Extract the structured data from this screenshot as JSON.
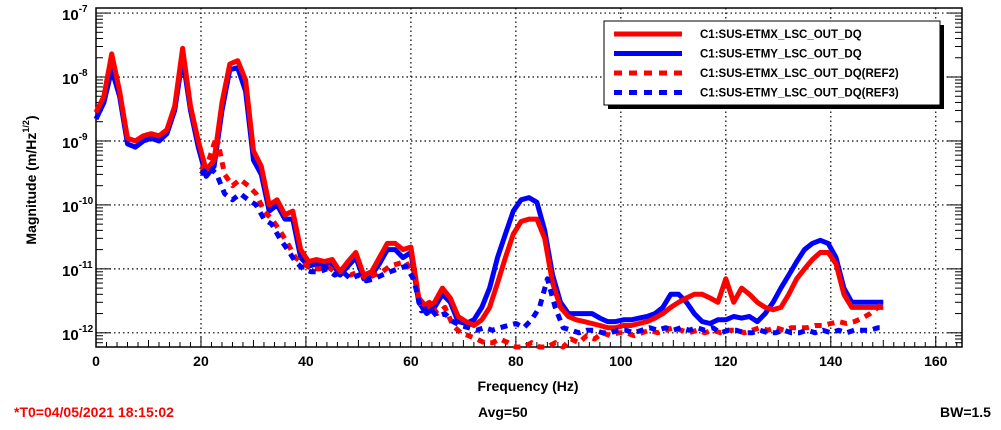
{
  "footer": {
    "timestamp": "*T0=04/05/2021 18:15:02",
    "avg": "Avg=50",
    "bw": "BW=1.5"
  },
  "colors": {
    "red": "#ff0000",
    "blue": "#0000ff",
    "background": "#ffffff"
  },
  "chart_data": {
    "type": "line",
    "title": "",
    "xlabel": "Frequency (Hz)",
    "ylabel": "Magnitude (m/Hz^1/2)",
    "ylabel_parts": {
      "main": "Magnitude (m/Hz",
      "sup": "1/2",
      "close": ")"
    },
    "xscale": "linear",
    "yscale": "log",
    "xlim": [
      0,
      165
    ],
    "ylim": [
      6e-13,
      1.2e-07
    ],
    "grid": true,
    "legend_position": "top-right",
    "x_ticks": [
      {
        "value": 0,
        "label": "0"
      },
      {
        "value": 20,
        "label": "20"
      },
      {
        "value": 40,
        "label": "40"
      },
      {
        "value": 60,
        "label": "60"
      },
      {
        "value": 80,
        "label": "80"
      },
      {
        "value": 100,
        "label": "100"
      },
      {
        "value": 120,
        "label": "120"
      },
      {
        "value": 140,
        "label": "140"
      },
      {
        "value": 160,
        "label": "160"
      }
    ],
    "y_ticks": [
      {
        "value": 1e-07,
        "base": "10",
        "exp": "-7"
      },
      {
        "value": 1e-08,
        "base": "10",
        "exp": "-8"
      },
      {
        "value": 1e-09,
        "base": "10",
        "exp": "-9"
      },
      {
        "value": 1e-10,
        "base": "10",
        "exp": "-10"
      },
      {
        "value": 1e-11,
        "base": "10",
        "exp": "-11"
      },
      {
        "value": 1e-12,
        "base": "10",
        "exp": "-12"
      }
    ],
    "series": [
      {
        "name": "C1:SUS-ETMY_LSC_OUT_DQ",
        "color": "#0000ff",
        "style": "solid",
        "x": [
          0,
          1.5,
          3,
          4.5,
          6,
          7.5,
          9,
          10.5,
          12,
          13.5,
          15,
          16.5,
          18,
          19.5,
          21,
          22.5,
          24,
          25.5,
          27,
          28.5,
          30,
          31.5,
          33,
          34.5,
          36,
          37.5,
          39,
          40.5,
          42,
          43.5,
          45,
          46.5,
          48,
          49.5,
          51,
          52.5,
          54,
          55.5,
          57,
          58.5,
          60,
          61.5,
          63,
          64.5,
          66,
          67.5,
          69,
          70.5,
          72,
          73.5,
          75,
          76.5,
          78,
          79.5,
          81,
          82.5,
          84,
          85.5,
          87,
          88.5,
          90,
          91.5,
          93,
          94.5,
          96,
          97.5,
          99,
          100.5,
          102,
          103.5,
          105,
          106.5,
          108,
          109.5,
          111,
          112.5,
          114,
          115.5,
          117,
          118.5,
          120,
          121.5,
          123,
          124.5,
          126,
          127.5,
          129,
          130.5,
          132,
          133.5,
          135,
          136.5,
          138,
          139.5,
          141,
          142.5,
          144,
          145.5,
          147,
          148.5,
          150
        ],
        "values": [
          2.2e-09,
          4e-09,
          1.3e-08,
          5e-09,
          9e-10,
          8e-10,
          1e-09,
          1.1e-09,
          1e-09,
          1.3e-09,
          3e-09,
          2e-08,
          3e-09,
          8e-10,
          2.8e-10,
          4e-10,
          3e-09,
          1.3e-08,
          1.4e-08,
          6e-09,
          5e-10,
          3e-10,
          8e-11,
          1e-10,
          6e-11,
          6e-11,
          1.5e-11,
          1.1e-11,
          1.2e-11,
          1.1e-11,
          1.2e-11,
          8e-12,
          1.1e-11,
          1.5e-11,
          7e-12,
          8e-12,
          1.2e-11,
          2e-11,
          2e-11,
          1.5e-11,
          1.8e-11,
          3e-12,
          2e-12,
          2.5e-12,
          4e-12,
          3e-12,
          1.5e-12,
          1.4e-12,
          1.6e-12,
          2.5e-12,
          5e-12,
          1.5e-11,
          3.5e-11,
          8e-11,
          1.2e-10,
          1.3e-10,
          1.1e-10,
          4e-11,
          8e-12,
          3e-12,
          2e-12,
          2e-12,
          2e-12,
          2e-12,
          1.7e-12,
          1.5e-12,
          1.5e-12,
          1.6e-12,
          1.6e-12,
          1.7e-12,
          1.8e-12,
          2e-12,
          2.5e-12,
          4e-12,
          4e-12,
          3e-12,
          2e-12,
          1.5e-12,
          1.4e-12,
          1.6e-12,
          1.6e-12,
          1.8e-12,
          1.7e-12,
          1.8e-12,
          1.5e-12,
          2e-12,
          3e-12,
          5e-12,
          8e-12,
          1.3e-11,
          2e-11,
          2.5e-11,
          2.8e-11,
          2.5e-11,
          1.5e-11,
          5e-12,
          3e-12,
          3e-12,
          3e-12,
          3e-12,
          3e-12
        ]
      },
      {
        "name": "C1:SUS-ETMX_LSC_OUT_DQ",
        "color": "#ff0000",
        "style": "solid",
        "x": [
          0,
          1.5,
          3,
          4.5,
          6,
          7.5,
          9,
          10.5,
          12,
          13.5,
          15,
          16.5,
          18,
          19.5,
          21,
          22.5,
          24,
          25.5,
          27,
          28.5,
          30,
          31.5,
          33,
          34.5,
          36,
          37.5,
          39,
          40.5,
          42,
          43.5,
          45,
          46.5,
          48,
          49.5,
          51,
          52.5,
          54,
          55.5,
          57,
          58.5,
          60,
          61.5,
          63,
          64.5,
          66,
          67.5,
          69,
          70.5,
          72,
          73.5,
          75,
          76.5,
          78,
          79.5,
          81,
          82.5,
          84,
          85.5,
          87,
          88.5,
          90,
          91.5,
          93,
          94.5,
          96,
          97.5,
          99,
          100.5,
          102,
          103.5,
          105,
          106.5,
          108,
          109.5,
          111,
          112.5,
          114,
          115.5,
          117,
          118.5,
          120,
          121.5,
          123,
          124.5,
          126,
          127.5,
          129,
          130.5,
          132,
          133.5,
          135,
          136.5,
          138,
          139.5,
          141,
          142.5,
          144,
          145.5,
          147,
          148.5,
          150
        ],
        "values": [
          2.8e-09,
          5e-09,
          2.3e-08,
          6e-09,
          1.1e-09,
          1e-09,
          1.2e-09,
          1.3e-09,
          1.2e-09,
          1.5e-09,
          3.5e-09,
          2.8e-08,
          3.5e-09,
          1e-09,
          3.5e-10,
          5e-10,
          4e-09,
          1.6e-08,
          1.8e-08,
          9e-09,
          7e-10,
          4e-10,
          1e-10,
          1.2e-10,
          7e-11,
          8e-11,
          2e-11,
          1.3e-11,
          1.4e-11,
          1.3e-11,
          1.4e-11,
          9e-12,
          1.3e-11,
          1.8e-11,
          8e-12,
          9e-12,
          1.5e-11,
          2.5e-11,
          2.5e-11,
          2e-11,
          2.2e-11,
          3.5e-12,
          2.5e-12,
          3e-12,
          5e-12,
          3.5e-12,
          1.8e-12,
          1.5e-12,
          1.3e-12,
          1.6e-12,
          2.5e-12,
          6e-12,
          1.5e-11,
          3.5e-11,
          5.5e-11,
          6e-11,
          6e-11,
          3e-11,
          6e-12,
          2.5e-12,
          1.8e-12,
          1.6e-12,
          1.5e-12,
          1.4e-12,
          1.3e-12,
          1.2e-12,
          1.2e-12,
          1.3e-12,
          1.3e-12,
          1.4e-12,
          1.5e-12,
          1.7e-12,
          2e-12,
          2.5e-12,
          3e-12,
          3.5e-12,
          4e-12,
          4e-12,
          3.5e-12,
          3e-12,
          7e-12,
          3e-12,
          5e-12,
          4e-12,
          3e-12,
          2.5e-12,
          2.3e-12,
          2.5e-12,
          4e-12,
          7e-12,
          1e-11,
          1.4e-11,
          1.8e-11,
          1.8e-11,
          1.2e-11,
          4e-12,
          2.5e-12,
          2.5e-12,
          2.5e-12,
          2.5e-12,
          2.5e-12
        ]
      },
      {
        "name": "C1:SUS-ETMX_LSC_OUT_DQ(REF2)",
        "color": "#ff0000",
        "style": "dashed",
        "x": [
          20,
          21.5,
          23,
          24.5,
          26,
          27.5,
          29,
          30.5,
          32,
          33.5,
          35,
          36.5,
          38,
          39.5,
          41,
          42.5,
          44,
          45.5,
          47,
          48.5,
          50,
          51.5,
          53,
          54.5,
          56,
          57.5,
          59,
          60.5,
          62,
          63.5,
          65,
          66.5,
          68,
          69.5,
          71,
          72.5,
          74,
          75.5,
          77,
          78.5,
          80,
          81.5,
          83,
          84.5,
          86,
          87.5,
          89,
          90.5,
          92,
          93.5,
          95,
          96.5,
          98,
          99.5,
          101,
          102.5,
          104,
          105.5,
          107,
          108.5,
          110,
          111.5,
          113,
          114.5,
          116,
          117.5,
          119,
          120.5,
          122,
          123.5,
          125,
          126.5,
          128,
          129.5,
          131,
          132.5,
          134,
          135.5,
          137,
          138.5,
          140,
          141.5,
          143,
          144.5,
          146,
          147.5,
          149,
          150
        ],
        "values": [
          3.5e-10,
          5e-10,
          1.2e-09,
          3e-10,
          2e-10,
          2.5e-10,
          2e-10,
          1.5e-10,
          8e-11,
          6e-11,
          4e-11,
          2.5e-11,
          1.5e-11,
          1.2e-11,
          1e-11,
          1e-11,
          1.1e-11,
          9e-12,
          1e-11,
          8e-12,
          9e-12,
          7e-12,
          8e-12,
          9e-12,
          1.1e-11,
          1.2e-11,
          1.3e-11,
          8e-12,
          2.5e-12,
          3e-12,
          2e-12,
          2.5e-12,
          1.3e-12,
          1e-12,
          9e-13,
          8e-13,
          7e-13,
          7e-13,
          8e-13,
          7e-13,
          6e-13,
          6e-13,
          7e-13,
          6e-13,
          6e-13,
          7e-13,
          6e-13,
          8e-13,
          7e-13,
          9e-13,
          8e-13,
          1e-12,
          9e-13,
          1e-12,
          1e-12,
          9e-13,
          1e-12,
          1.1e-12,
          1e-12,
          1.1e-12,
          1.2e-12,
          1.1e-12,
          1e-12,
          1.1e-12,
          1e-12,
          1.1e-12,
          1e-12,
          1.1e-12,
          1.1e-12,
          1e-12,
          1.1e-12,
          1.2e-12,
          1.1e-12,
          1.2e-12,
          1.1e-12,
          1.2e-12,
          1.2e-12,
          1.2e-12,
          1.3e-12,
          1.3e-12,
          1.4e-12,
          1.5e-12,
          1.4e-12,
          1.5e-12,
          1.7e-12,
          2e-12,
          2.5e-12,
          3e-12
        ]
      },
      {
        "name": "C1:SUS-ETMY_LSC_OUT_DQ(REF3)",
        "color": "#0000ff",
        "style": "dashed",
        "x": [
          20,
          21.5,
          23,
          24.5,
          26,
          27.5,
          29,
          30.5,
          32,
          33.5,
          35,
          36.5,
          38,
          39.5,
          41,
          42.5,
          44,
          45.5,
          47,
          48.5,
          50,
          51.5,
          53,
          54.5,
          56,
          57.5,
          59,
          60.5,
          62,
          63.5,
          65,
          66.5,
          68,
          69.5,
          71,
          72.5,
          74,
          75.5,
          77,
          78.5,
          80,
          81.5,
          83,
          84.5,
          86,
          87.5,
          89,
          90.5,
          92,
          93.5,
          95,
          96.5,
          98,
          99.5,
          101,
          102.5,
          104,
          105.5,
          107,
          108.5,
          110,
          111.5,
          113,
          114.5,
          116,
          117.5,
          119,
          120.5,
          122,
          123.5,
          125,
          126.5,
          128,
          129.5,
          131,
          132.5,
          134,
          135.5,
          137,
          138.5,
          140,
          141.5,
          143,
          144.5,
          146,
          147.5,
          149,
          150
        ],
        "values": [
          3e-10,
          4e-10,
          3e-10,
          1.5e-10,
          1.2e-10,
          1.5e-10,
          1.2e-10,
          1e-10,
          6e-11,
          5e-11,
          3e-11,
          2e-11,
          1.3e-11,
          1e-11,
          9e-12,
          9e-12,
          1e-11,
          8e-12,
          9e-12,
          7e-12,
          8e-12,
          6.5e-12,
          7e-12,
          8e-12,
          9e-12,
          1e-11,
          1.1e-11,
          7e-12,
          2.2e-12,
          2.5e-12,
          1.8e-12,
          2e-12,
          1.5e-12,
          1.3e-12,
          1.2e-12,
          1.1e-12,
          1.2e-12,
          1.1e-12,
          1.2e-12,
          1.3e-12,
          1.4e-12,
          1.2e-12,
          1.6e-12,
          2.5e-12,
          7e-12,
          2.5e-12,
          1.2e-12,
          1.1e-12,
          1e-12,
          1.1e-12,
          1.1e-12,
          1e-12,
          1e-12,
          1.1e-12,
          1.1e-12,
          1e-12,
          1.1e-12,
          1.2e-12,
          1.1e-12,
          1.2e-12,
          1.1e-12,
          1.2e-12,
          1.1e-12,
          1.2e-12,
          1.1e-12,
          1.2e-12,
          1e-12,
          1.1e-12,
          1.1e-12,
          1e-12,
          1e-12,
          1.1e-12,
          1e-12,
          1e-12,
          1.1e-12,
          1e-12,
          1e-12,
          1.1e-12,
          1e-12,
          1.1e-12,
          1e-12,
          1.1e-12,
          1e-12,
          1.1e-12,
          1.1e-12,
          1.1e-12,
          1.2e-12,
          1.2e-12
        ]
      }
    ],
    "legend_order": [
      1,
      0,
      2,
      3
    ]
  }
}
